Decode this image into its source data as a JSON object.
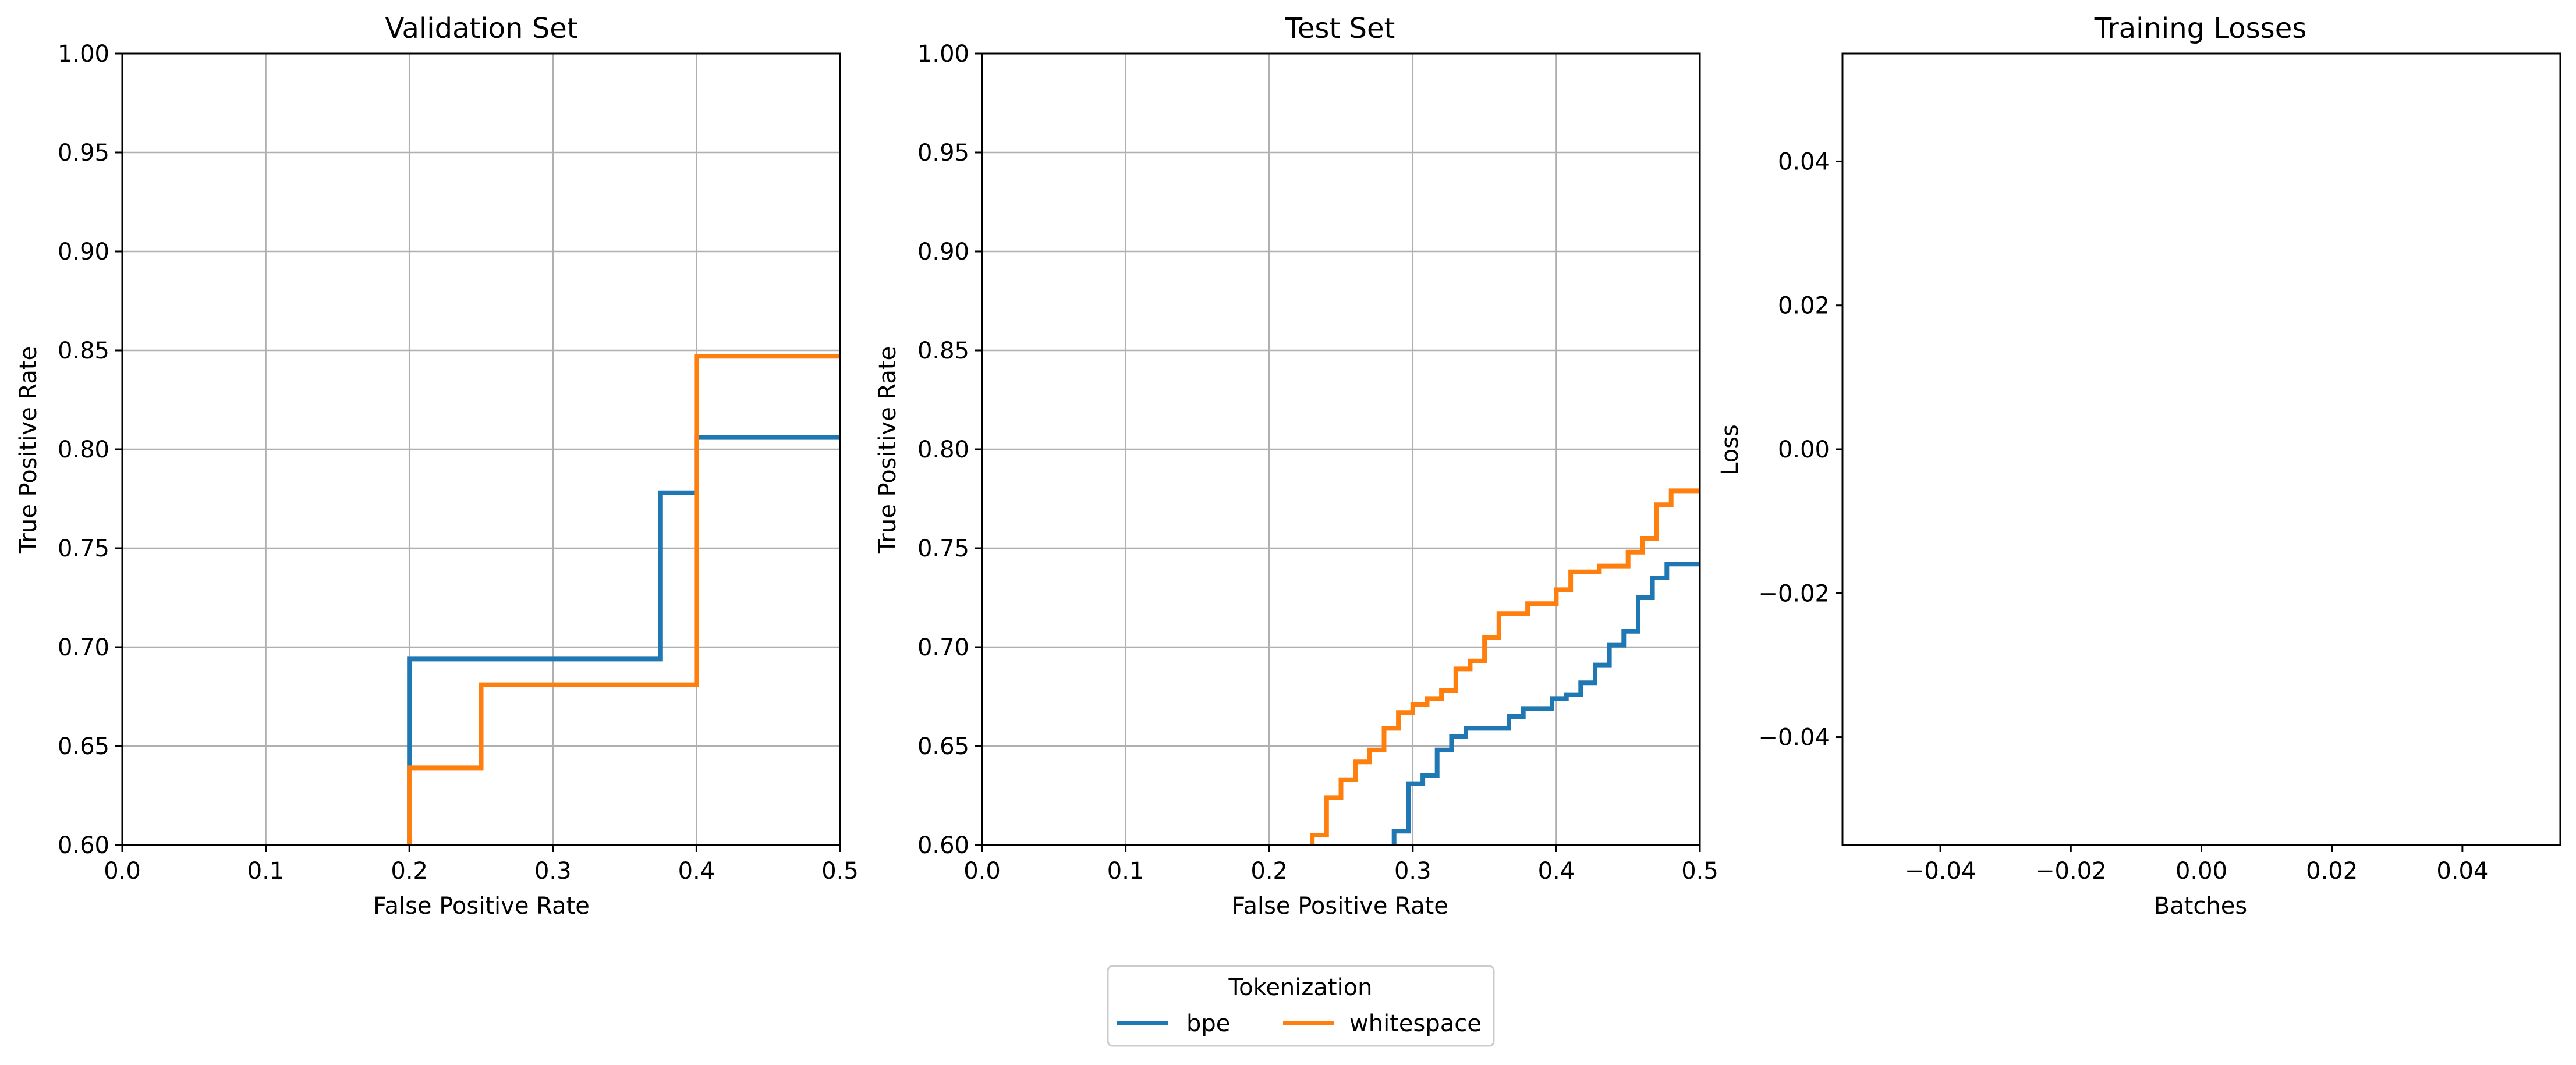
{
  "chart_data": [
    {
      "type": "line",
      "title": "Validation Set",
      "xlabel": "False Positive Rate",
      "ylabel": "True Positive Rate",
      "xlim": [
        0.0,
        0.5
      ],
      "ylim": [
        0.6,
        1.0
      ],
      "xticks": [
        "0.0",
        "0.1",
        "0.2",
        "0.3",
        "0.4",
        "0.5"
      ],
      "yticks": [
        "0.60",
        "0.65",
        "0.70",
        "0.75",
        "0.80",
        "0.85",
        "0.90",
        "0.95",
        "1.00"
      ],
      "grid": true,
      "series": [
        {
          "name": "bpe",
          "color": "#1f77b4",
          "x": [
            0.2,
            0.2,
            0.375,
            0.375,
            0.4,
            0.4,
            0.5
          ],
          "y": [
            0.6,
            0.694,
            0.694,
            0.778,
            0.778,
            0.806,
            0.806
          ]
        },
        {
          "name": "whitespace",
          "color": "#ff7f0e",
          "x": [
            0.2,
            0.2,
            0.25,
            0.25,
            0.4,
            0.4,
            0.5
          ],
          "y": [
            0.6,
            0.639,
            0.639,
            0.681,
            0.681,
            0.847,
            0.847
          ]
        }
      ]
    },
    {
      "type": "line",
      "title": "Test Set",
      "xlabel": "False Positive Rate",
      "ylabel": "True Positive Rate",
      "xlim": [
        0.0,
        0.5
      ],
      "ylim": [
        0.6,
        1.0
      ],
      "xticks": [
        "0.0",
        "0.1",
        "0.2",
        "0.3",
        "0.4",
        "0.5"
      ],
      "yticks": [
        "0.60",
        "0.65",
        "0.70",
        "0.75",
        "0.80",
        "0.85",
        "0.90",
        "0.95",
        "1.00"
      ],
      "grid": true,
      "series": [
        {
          "name": "bpe",
          "color": "#1f77b4",
          "x": [
            0.287,
            0.287,
            0.297,
            0.297,
            0.307,
            0.307,
            0.317,
            0.317,
            0.327,
            0.327,
            0.337,
            0.337,
            0.347,
            0.347,
            0.367,
            0.367,
            0.377,
            0.377,
            0.397,
            0.397,
            0.407,
            0.407,
            0.417,
            0.417,
            0.427,
            0.427,
            0.437,
            0.437,
            0.447,
            0.447,
            0.457,
            0.457,
            0.467,
            0.467,
            0.477,
            0.477,
            0.487,
            0.487,
            0.495,
            0.495,
            0.5
          ],
          "y": [
            0.6,
            0.607,
            0.607,
            0.631,
            0.631,
            0.635,
            0.635,
            0.648,
            0.648,
            0.655,
            0.655,
            0.659,
            0.659,
            0.659,
            0.659,
            0.665,
            0.665,
            0.669,
            0.669,
            0.674,
            0.674,
            0.676,
            0.676,
            0.682,
            0.682,
            0.691,
            0.691,
            0.701,
            0.701,
            0.708,
            0.708,
            0.725,
            0.725,
            0.735,
            0.735,
            0.742,
            0.742,
            0.742,
            0.742,
            0.742,
            0.742
          ]
        },
        {
          "name": "whitespace",
          "color": "#ff7f0e",
          "x": [
            0.23,
            0.23,
            0.24,
            0.24,
            0.25,
            0.25,
            0.26,
            0.26,
            0.27,
            0.27,
            0.28,
            0.28,
            0.29,
            0.29,
            0.3,
            0.3,
            0.31,
            0.31,
            0.32,
            0.32,
            0.33,
            0.33,
            0.34,
            0.34,
            0.35,
            0.35,
            0.36,
            0.36,
            0.37,
            0.37,
            0.38,
            0.38,
            0.4,
            0.4,
            0.41,
            0.41,
            0.42,
            0.42,
            0.43,
            0.43,
            0.45,
            0.45,
            0.46,
            0.46,
            0.47,
            0.47,
            0.48,
            0.48,
            0.49,
            0.49,
            0.5
          ],
          "y": [
            0.6,
            0.605,
            0.605,
            0.624,
            0.624,
            0.633,
            0.633,
            0.642,
            0.642,
            0.648,
            0.648,
            0.659,
            0.659,
            0.667,
            0.667,
            0.671,
            0.671,
            0.674,
            0.674,
            0.678,
            0.678,
            0.689,
            0.689,
            0.693,
            0.693,
            0.705,
            0.705,
            0.717,
            0.717,
            0.717,
            0.717,
            0.722,
            0.722,
            0.729,
            0.729,
            0.738,
            0.738,
            0.738,
            0.738,
            0.741,
            0.741,
            0.748,
            0.748,
            0.755,
            0.755,
            0.772,
            0.772,
            0.779,
            0.779,
            0.779,
            0.779
          ]
        }
      ]
    },
    {
      "type": "line",
      "title": "Training Losses",
      "xlabel": "Batches",
      "ylabel": "Loss",
      "xlim": [
        -0.055,
        0.055
      ],
      "ylim": [
        -0.055,
        0.055
      ],
      "xticks": [
        "−0.04",
        "−0.02",
        "0.00",
        "0.02",
        "0.04"
      ],
      "yticks": [
        "−0.04",
        "−0.02",
        "0.00",
        "0.02",
        "0.04"
      ],
      "grid": false,
      "series": []
    }
  ],
  "legend": {
    "title": "Tokenization",
    "entries": [
      {
        "label": "bpe",
        "color": "#1f77b4"
      },
      {
        "label": "whitespace",
        "color": "#ff7f0e"
      }
    ]
  }
}
